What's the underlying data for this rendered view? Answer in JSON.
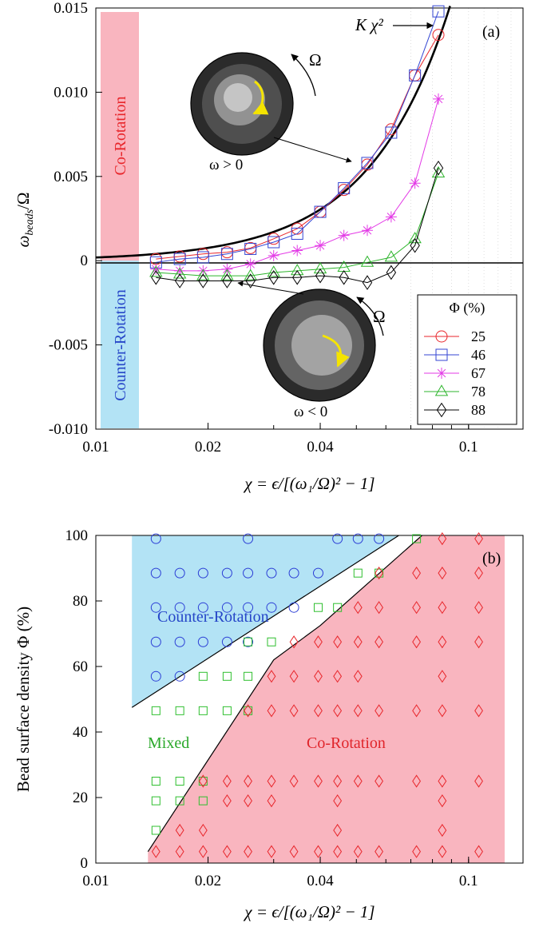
{
  "chart_data": [
    {
      "panel_label": "(a)",
      "type": "line",
      "x_scale": "log",
      "xlim": [
        0.01,
        0.14
      ],
      "ylim": [
        -0.01,
        0.015
      ],
      "xticks": [
        0.01,
        0.02,
        0.04,
        0.1
      ],
      "xtick_labels": [
        "0.01",
        "0.02",
        "0.04",
        "0.1"
      ],
      "yticks": [
        -0.01,
        -0.005,
        0,
        0.005,
        0.01,
        0.015
      ],
      "ytick_labels": [
        "-0.010",
        "-0.005",
        "0",
        "0.005",
        "0.010",
        "0.015"
      ],
      "xlabel": "χ = ϵ/[(ω₁/Ω)² − 1]",
      "ylabel": "ω_beads/Ω",
      "ylabel_main": "ω",
      "ylabel_sub": "beads",
      "ylabel_tail": "/Ω",
      "legend_title": "Φ (%)",
      "legend_position": "lower-right",
      "fit_curve_label": "K χ²",
      "fit_curve_k": 1.9,
      "region_labels": {
        "co": "Co-Rotation",
        "counter": "Counter-Rotation"
      },
      "inset_labels": {
        "upper": "ω > 0",
        "lower": "ω < 0",
        "omega": "Ω"
      },
      "series": [
        {
          "name": "25",
          "marker": "circle",
          "color": "#e8262b",
          "x": [
            0.0145,
            0.0168,
            0.0194,
            0.0225,
            0.026,
            0.03,
            0.0347,
            0.04,
            0.0463,
            0.0535,
            0.062,
            0.0718,
            0.083
          ],
          "y": [
            0.0001,
            0.00025,
            0.0004,
            0.0005,
            0.00075,
            0.0013,
            0.0019,
            0.0029,
            0.0042,
            0.0057,
            0.0078,
            0.011,
            0.0134
          ]
        },
        {
          "name": "46",
          "marker": "square",
          "color": "#3446d3",
          "x": [
            0.0145,
            0.0168,
            0.0194,
            0.0225,
            0.026,
            0.03,
            0.0347,
            0.04,
            0.0463,
            0.0535,
            0.062,
            0.0718,
            0.083
          ],
          "y": [
            -0.0001,
            0.0001,
            0.0002,
            0.0004,
            0.0007,
            0.0011,
            0.0016,
            0.0029,
            0.0043,
            0.0058,
            0.0076,
            0.011,
            0.0148
          ]
        },
        {
          "name": "67",
          "marker": "star",
          "color": "#e33ae6",
          "x": [
            0.0145,
            0.0168,
            0.0194,
            0.0225,
            0.026,
            0.03,
            0.0347,
            0.04,
            0.0463,
            0.0535,
            0.062,
            0.0718,
            0.083
          ],
          "y": [
            -0.0005,
            -0.0006,
            -0.0006,
            -0.0005,
            -0.0002,
            0.0003,
            0.0006,
            0.0009,
            0.0015,
            0.0018,
            0.0026,
            0.0046,
            0.0096
          ]
        },
        {
          "name": "78",
          "marker": "triangle",
          "color": "#2db52c",
          "x": [
            0.0145,
            0.0168,
            0.0194,
            0.0225,
            0.026,
            0.03,
            0.0347,
            0.04,
            0.0463,
            0.0535,
            0.062,
            0.0718,
            0.083
          ],
          "y": [
            -0.0007,
            -0.0008,
            -0.0009,
            -0.0009,
            -0.0009,
            -0.0007,
            -0.0006,
            -0.0005,
            -0.0004,
            -0.0001,
            0.0002,
            0.0013,
            0.0052
          ]
        },
        {
          "name": "88",
          "marker": "diamond",
          "color": "#000000",
          "x": [
            0.0145,
            0.0168,
            0.0194,
            0.0225,
            0.026,
            0.03,
            0.0347,
            0.04,
            0.0463,
            0.0535,
            0.062,
            0.0718,
            0.083
          ],
          "y": [
            -0.001,
            -0.0012,
            -0.0012,
            -0.0012,
            -0.0012,
            -0.001,
            -0.001,
            -0.0009,
            -0.001,
            -0.0013,
            -0.0007,
            0.0009,
            0.0055
          ]
        }
      ]
    },
    {
      "panel_label": "(b)",
      "type": "scatter",
      "x_scale": "log",
      "xlim": [
        0.01,
        0.14
      ],
      "ylim": [
        0,
        100
      ],
      "xticks": [
        0.01,
        0.02,
        0.04,
        0.1
      ],
      "xtick_labels": [
        "0.01",
        "0.02",
        "0.04",
        "0.1"
      ],
      "yticks": [
        0,
        20,
        40,
        60,
        80,
        100
      ],
      "ytick_labels": [
        "0",
        "20",
        "40",
        "60",
        "80",
        "100"
      ],
      "xlabel": "χ = ϵ/[(ω₁/Ω)² − 1]",
      "ylabel": "Bead surface density Φ (%)",
      "region_labels": {
        "counter": "Counter-Rotation",
        "mixed": "Mixed",
        "co": "Co-Rotation"
      },
      "region_colors": {
        "counter": "#b3e3f5",
        "co": "#f9b5bf",
        "counter_text": "#2646c8",
        "mixed_text": "#2aa82a",
        "co_text": "#e0252b"
      },
      "boundaries": {
        "counter_upper": [
          [
            0.0125,
            100
          ],
          [
            0.0125,
            47.5
          ],
          [
            0.065,
            100
          ]
        ],
        "co_lower": [
          [
            0.0138,
            3.5
          ],
          [
            0.03,
            62
          ],
          [
            0.04,
            72.5
          ],
          [
            0.075,
            100
          ],
          [
            0.125,
            100
          ],
          [
            0.125,
            0
          ],
          [
            0.0138,
            0
          ]
        ]
      },
      "series": [
        {
          "name": "Counter-Rotation",
          "marker": "circle",
          "color": "#2c3fd6",
          "points": [
            [
              0.0145,
              99
            ],
            [
              0.0256,
              99
            ],
            [
              0.0445,
              99
            ],
            [
              0.0505,
              99
            ],
            [
              0.0575,
              99
            ],
            [
              0.0145,
              88.5
            ],
            [
              0.0168,
              88.5
            ],
            [
              0.0194,
              88.5
            ],
            [
              0.0225,
              88.5
            ],
            [
              0.0256,
              88.5
            ],
            [
              0.0296,
              88.5
            ],
            [
              0.034,
              88.5
            ],
            [
              0.0395,
              88.5
            ],
            [
              0.0145,
              78
            ],
            [
              0.0168,
              78
            ],
            [
              0.0194,
              78
            ],
            [
              0.0225,
              78
            ],
            [
              0.0256,
              78
            ],
            [
              0.0296,
              78
            ],
            [
              0.034,
              78
            ],
            [
              0.0145,
              67.5
            ],
            [
              0.0168,
              67.5
            ],
            [
              0.0194,
              67.5
            ],
            [
              0.0225,
              67.5
            ],
            [
              0.0256,
              67.5
            ],
            [
              0.0145,
              57
            ],
            [
              0.0168,
              57
            ]
          ]
        },
        {
          "name": "Mixed",
          "marker": "square",
          "color": "#2fbf2f",
          "points": [
            [
              0.0725,
              99
            ],
            [
              0.0505,
              88.5
            ],
            [
              0.0575,
              88.5
            ],
            [
              0.0395,
              78
            ],
            [
              0.0445,
              78
            ],
            [
              0.0256,
              67.5
            ],
            [
              0.0296,
              67.5
            ],
            [
              0.0194,
              57
            ],
            [
              0.0225,
              57
            ],
            [
              0.0256,
              57
            ],
            [
              0.0145,
              46.5
            ],
            [
              0.0168,
              46.5
            ],
            [
              0.0194,
              46.5
            ],
            [
              0.0225,
              46.5
            ],
            [
              0.0256,
              46.5
            ],
            [
              0.0145,
              25
            ],
            [
              0.0168,
              25
            ],
            [
              0.0194,
              25
            ],
            [
              0.0145,
              19
            ],
            [
              0.0168,
              19
            ],
            [
              0.0194,
              19
            ],
            [
              0.0145,
              10
            ]
          ]
        },
        {
          "name": "Co-Rotation",
          "marker": "diamond",
          "color": "#e8262b",
          "points": [
            [
              0.085,
              99
            ],
            [
              0.1065,
              99
            ],
            [
              0.0575,
              88.5
            ],
            [
              0.0725,
              88.5
            ],
            [
              0.085,
              88.5
            ],
            [
              0.1065,
              88.5
            ],
            [
              0.0505,
              78
            ],
            [
              0.0575,
              78
            ],
            [
              0.0725,
              78
            ],
            [
              0.085,
              78
            ],
            [
              0.1065,
              78
            ],
            [
              0.034,
              67.5
            ],
            [
              0.0395,
              67.5
            ],
            [
              0.0445,
              67.5
            ],
            [
              0.0505,
              67.5
            ],
            [
              0.0575,
              67.5
            ],
            [
              0.0725,
              67.5
            ],
            [
              0.085,
              67.5
            ],
            [
              0.1065,
              67.5
            ],
            [
              0.0296,
              57
            ],
            [
              0.034,
              57
            ],
            [
              0.0395,
              57
            ],
            [
              0.0445,
              57
            ],
            [
              0.0505,
              57
            ],
            [
              0.085,
              57
            ],
            [
              0.0256,
              46.5
            ],
            [
              0.0296,
              46.5
            ],
            [
              0.034,
              46.5
            ],
            [
              0.0395,
              46.5
            ],
            [
              0.0445,
              46.5
            ],
            [
              0.0505,
              46.5
            ],
            [
              0.0575,
              46.5
            ],
            [
              0.0725,
              46.5
            ],
            [
              0.085,
              46.5
            ],
            [
              0.1065,
              46.5
            ],
            [
              0.0194,
              25
            ],
            [
              0.0225,
              25
            ],
            [
              0.0256,
              25
            ],
            [
              0.0296,
              25
            ],
            [
              0.034,
              25
            ],
            [
              0.0395,
              25
            ],
            [
              0.0445,
              25
            ],
            [
              0.0505,
              25
            ],
            [
              0.0575,
              25
            ],
            [
              0.0725,
              25
            ],
            [
              0.085,
              25
            ],
            [
              0.1065,
              25
            ],
            [
              0.0225,
              19
            ],
            [
              0.0256,
              19
            ],
            [
              0.0296,
              19
            ],
            [
              0.0445,
              19
            ],
            [
              0.085,
              19
            ],
            [
              0.0168,
              10
            ],
            [
              0.0194,
              10
            ],
            [
              0.0445,
              10
            ],
            [
              0.085,
              10
            ],
            [
              0.0145,
              3.5
            ],
            [
              0.0168,
              3.5
            ],
            [
              0.0194,
              3.5
            ],
            [
              0.0225,
              3.5
            ],
            [
              0.0256,
              3.5
            ],
            [
              0.0296,
              3.5
            ],
            [
              0.034,
              3.5
            ],
            [
              0.0395,
              3.5
            ],
            [
              0.0445,
              3.5
            ],
            [
              0.0505,
              3.5
            ],
            [
              0.0575,
              3.5
            ],
            [
              0.0725,
              3.5
            ],
            [
              0.085,
              3.5
            ],
            [
              0.1065,
              3.5
            ]
          ]
        }
      ]
    }
  ]
}
